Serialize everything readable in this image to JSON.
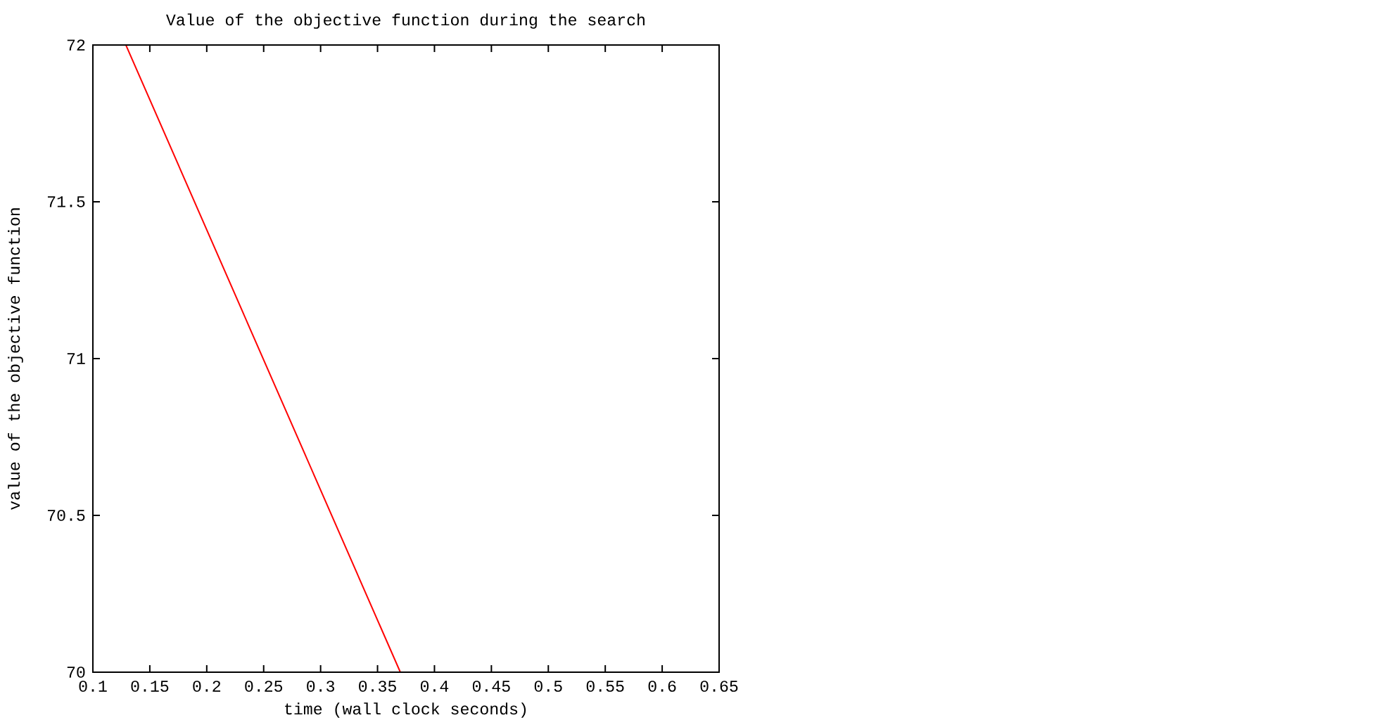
{
  "chart_data": {
    "type": "line",
    "title": "Value of the objective function during the search",
    "xlabel": "time (wall clock seconds)",
    "ylabel": "value of the objective function",
    "x": [
      0.129,
      0.37
    ],
    "series": [
      {
        "color": "#ff0000",
        "values": [
          72,
          70
        ]
      }
    ],
    "xlim": [
      0.1,
      0.65
    ],
    "ylim": [
      70,
      72
    ],
    "xticks": [
      0.1,
      0.15,
      0.2,
      0.25,
      0.3,
      0.35,
      0.4,
      0.45,
      0.5,
      0.55,
      0.6,
      0.65
    ],
    "yticks": [
      70,
      70.5,
      71,
      71.5,
      72
    ],
    "marker": "none",
    "line_style": "solid"
  }
}
